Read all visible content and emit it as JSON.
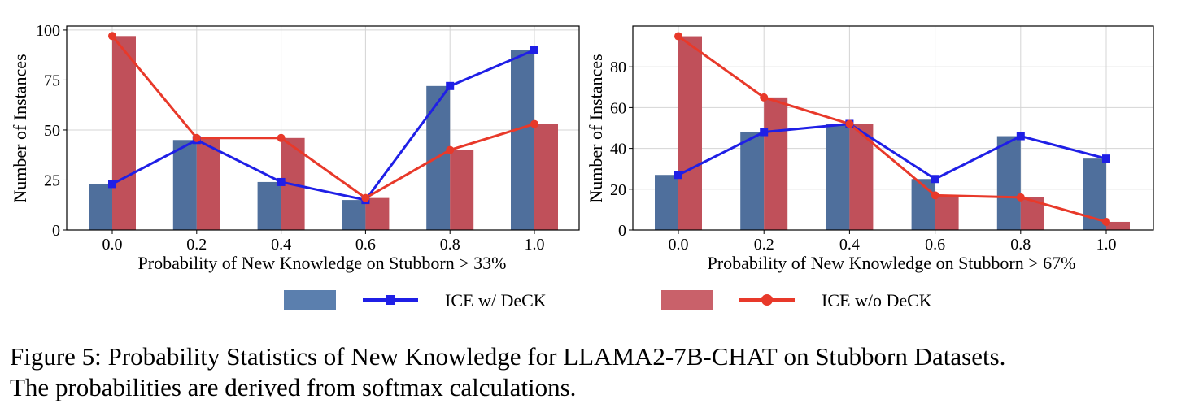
{
  "colors": {
    "bar_with_deck": "#4f6f9c",
    "bar_without_deck": "#c0505a",
    "line_with_deck": "#1f1fe6",
    "line_without_deck": "#e8392a",
    "legend_bar_with_deck": "#5b7fae",
    "legend_bar_without_deck": "#c9616a"
  },
  "legend": {
    "with_deck_label": "ICE w/ DeCK",
    "without_deck_label": "ICE w/o DeCK"
  },
  "caption": {
    "line1_a": "Figure 5: Probability Statistics of New Knowledge for L",
    "line1_sc1": "LA",
    "line1_b": "MA2-7B-",
    "line1_sc2": "CHAT",
    "line1_c": " on Stubborn Datasets.",
    "line2": "The probabilities are derived from softmax calculations."
  },
  "chart_data": [
    {
      "type": "bar",
      "xlabel": "Probability of New Knowledge on Stubborn > 33%",
      "ylabel": "Number of Instances",
      "categories": [
        "0.0",
        "0.2",
        "0.4",
        "0.6",
        "0.8",
        "1.0"
      ],
      "ylim": [
        0,
        102
      ],
      "yticks": [
        0,
        25,
        50,
        75,
        100
      ],
      "grid": true,
      "series": [
        {
          "name": "ICE w/ DeCK",
          "kind": "bar+line",
          "marker": "square",
          "values": [
            23,
            45,
            24,
            15,
            72,
            90
          ]
        },
        {
          "name": "ICE w/o DeCK",
          "kind": "bar+line",
          "marker": "circle",
          "values": [
            97,
            46,
            46,
            16,
            40,
            53
          ]
        }
      ]
    },
    {
      "type": "bar",
      "xlabel": "Probability of New Knowledge on Stubborn > 67%",
      "ylabel": "Number of Instances",
      "categories": [
        "0.0",
        "0.2",
        "0.4",
        "0.6",
        "0.8",
        "1.0"
      ],
      "ylim": [
        0,
        100
      ],
      "yticks": [
        0,
        20,
        40,
        60,
        80
      ],
      "grid": true,
      "series": [
        {
          "name": "ICE w/ DeCK",
          "kind": "bar+line",
          "marker": "square",
          "values": [
            27,
            48,
            52,
            25,
            46,
            35
          ]
        },
        {
          "name": "ICE w/o DeCK",
          "kind": "bar+line",
          "marker": "circle",
          "values": [
            95,
            65,
            52,
            17,
            16,
            4
          ]
        }
      ]
    }
  ]
}
